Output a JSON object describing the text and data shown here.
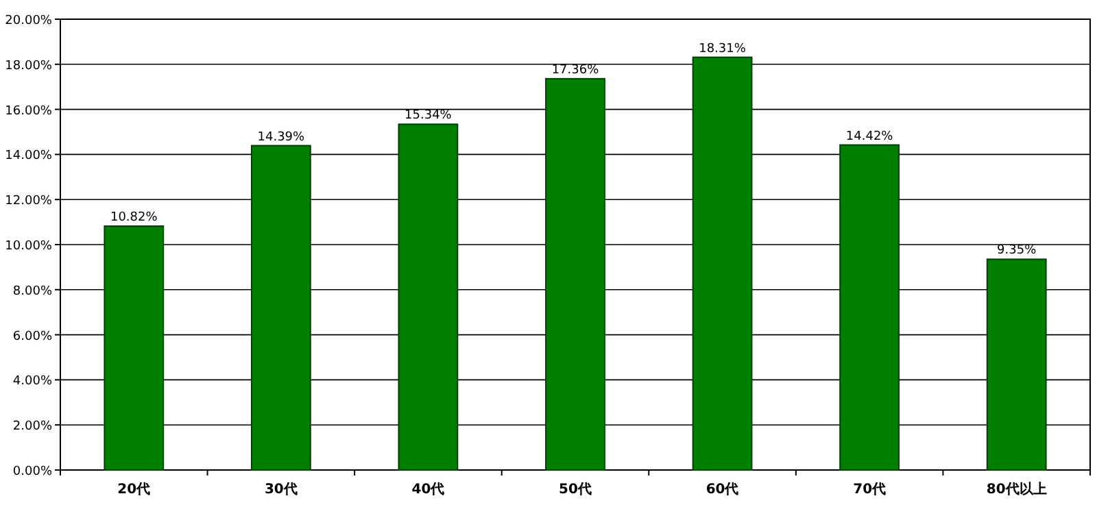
{
  "chart_data": {
    "type": "bar",
    "categories": [
      "20代",
      "30代",
      "40代",
      "50代",
      "60代",
      "70代",
      "80代以上"
    ],
    "values": [
      10.82,
      14.39,
      15.34,
      17.36,
      18.31,
      14.42,
      9.35
    ],
    "value_labels": [
      "10.82%",
      "14.39%",
      "15.34%",
      "17.36%",
      "18.31%",
      "14.42%",
      "9.35%"
    ],
    "color": "#007f00",
    "ylim": [
      0,
      20
    ],
    "yticks": [
      {
        "value": 0,
        "label": "0.00%"
      },
      {
        "value": 2,
        "label": "2.00%"
      },
      {
        "value": 4,
        "label": "4.00%"
      },
      {
        "value": 6,
        "label": "6.00%"
      },
      {
        "value": 8,
        "label": "8.00%"
      },
      {
        "value": 10,
        "label": "10.00%"
      },
      {
        "value": 12,
        "label": "12.00%"
      },
      {
        "value": 14,
        "label": "14.00%"
      },
      {
        "value": 16,
        "label": "16.00%"
      },
      {
        "value": 18,
        "label": "18.00%"
      },
      {
        "value": 20,
        "label": "20.00%"
      }
    ],
    "grid": "y"
  }
}
